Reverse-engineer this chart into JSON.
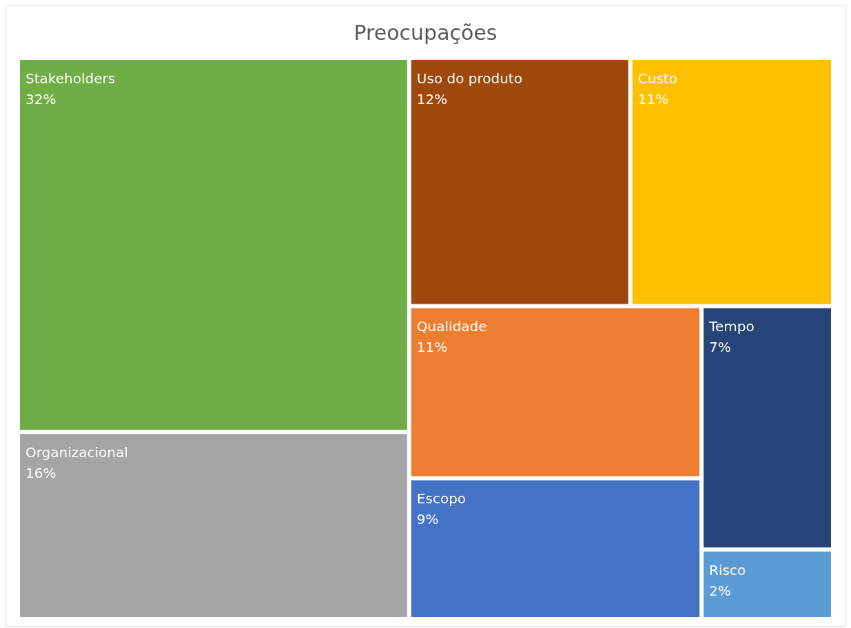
{
  "chart_data": {
    "type": "other",
    "title": "Preocupações",
    "categories": [
      "Stakeholders",
      "Organizacional",
      "Uso do produto",
      "Qualidade",
      "Custo",
      "Escopo",
      "Tempo",
      "Risco"
    ],
    "values": [
      32,
      16,
      12,
      11,
      11,
      9,
      7,
      2
    ],
    "value_labels": [
      "32%",
      "16%",
      "12%",
      "11%",
      "11%",
      "9%",
      "7%",
      "2%"
    ],
    "colors": [
      "#70ad47",
      "#a5a5a5",
      "#9e480e",
      "#ed7d31",
      "#ffc000",
      "#4472c4",
      "#264478",
      "#5b9bd5"
    ]
  }
}
